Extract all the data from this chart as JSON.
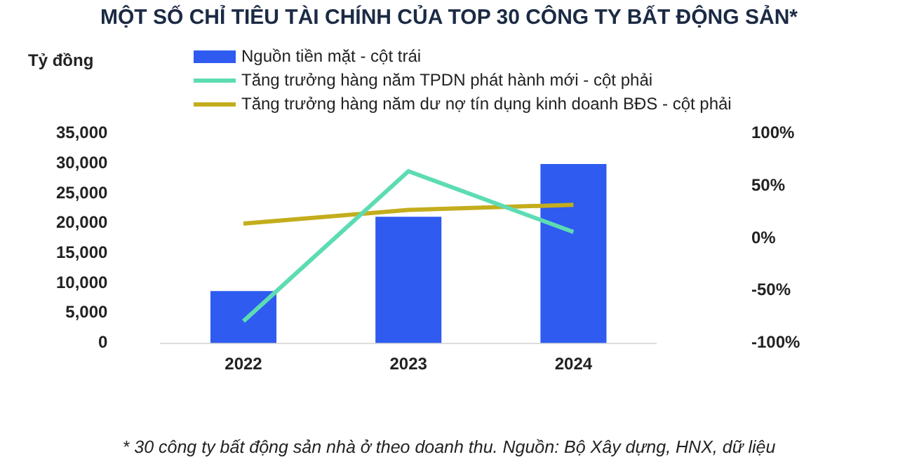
{
  "chart_data": {
    "type": "bar",
    "title": "MỘT SỐ CHỈ TIÊU TÀI CHÍNH CỦA TOP 30 CÔNG TY BẤT ĐỘNG SẢN*",
    "ylabel": "Tỷ đồng",
    "annotations": [
      "* 30 công ty bất động sản nhà ở theo doanh thu. Nguồn: Bộ Xây dựng, HNX, dữ liệu"
    ],
    "categories": [
      "2022",
      "2023",
      "2024"
    ],
    "series": [
      {
        "name": "Nguồn tiền mặt - cột trái",
        "color": "#2f5bf0",
        "values": [
          8700,
          21100,
          29900
        ]
      },
      {
        "name": "Tăng trưởng hàng năm TPDN phát hành mới - cột phải",
        "type": "line",
        "axis": "y2",
        "color": "#5ddcb4",
        "values": [
          -79,
          64,
          6
        ]
      },
      {
        "name": "Tăng trưởng hàng năm dư nợ tín dụng kinh doanh BĐS - cột phải",
        "type": "line",
        "axis": "y2",
        "color": "#c4ad1c",
        "values": [
          14,
          27,
          32
        ]
      }
    ],
    "ylim": [
      0,
      35000
    ],
    "yticks": [
      {
        "value": 0,
        "label": "0"
      },
      {
        "value": 5000,
        "label": "5,000"
      },
      {
        "value": 10000,
        "label": "10,000"
      },
      {
        "value": 15000,
        "label": "15,000"
      },
      {
        "value": 20000,
        "label": "20,000"
      },
      {
        "value": 25000,
        "label": "25,000"
      },
      {
        "value": 30000,
        "label": "30,000"
      },
      {
        "value": 35000,
        "label": "35,000"
      }
    ],
    "y2lim": [
      -100,
      100
    ],
    "y2ticks": [
      {
        "value": -100,
        "label": "-100%"
      },
      {
        "value": -50,
        "label": "-50%"
      },
      {
        "value": 0,
        "label": "0%"
      },
      {
        "value": 50,
        "label": "50%"
      },
      {
        "value": 100,
        "label": "100%"
      }
    ],
    "grid": false,
    "legend": "top",
    "marker": "none",
    "line_style": "solid"
  }
}
